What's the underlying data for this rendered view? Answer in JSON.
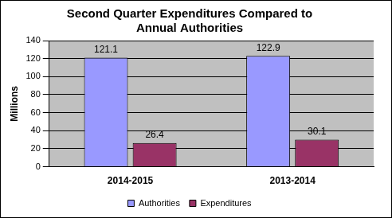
{
  "chart_data": {
    "type": "bar",
    "title": "Second Quarter Expenditures Compared to Annual Authorities",
    "y_label": "Millions",
    "categories": [
      "2014-2015",
      "2013-2014"
    ],
    "series": [
      {
        "name": "Authorities",
        "color": "#9999ff",
        "values": [
          121.1,
          122.9
        ]
      },
      {
        "name": "Expenditures",
        "color": "#993366",
        "values": [
          26.4,
          30.1
        ]
      }
    ],
    "ylim": [
      0,
      140
    ],
    "yticks": [
      0,
      20,
      40,
      60,
      80,
      100,
      120,
      140
    ],
    "grid": true,
    "legend": "bottom",
    "data_labels": true
  }
}
